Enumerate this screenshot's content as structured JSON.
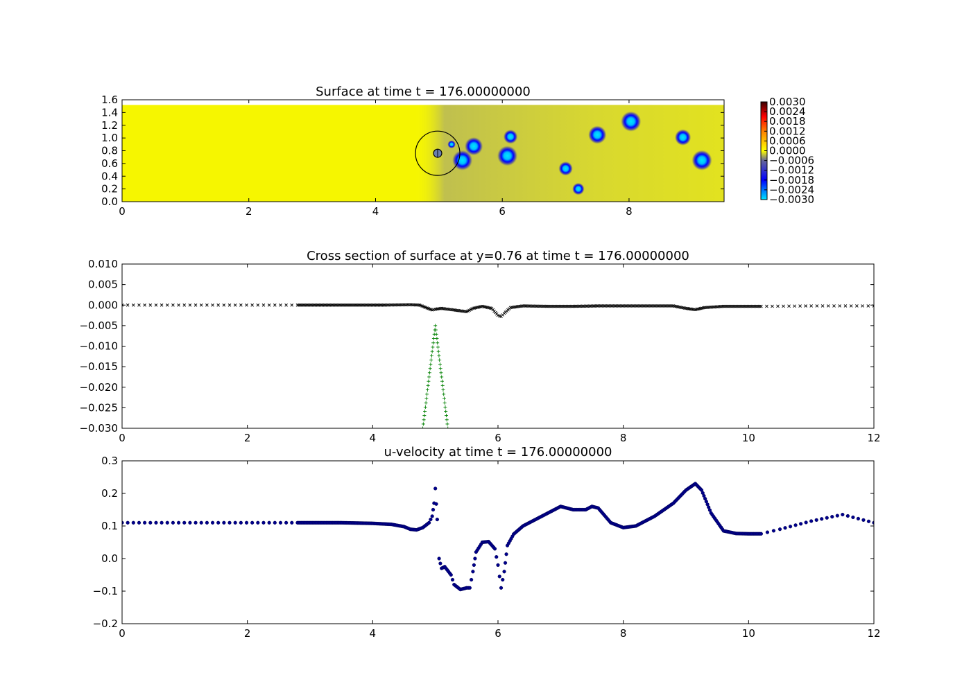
{
  "chart_data": [
    {
      "type": "heatmap",
      "title": "Surface at time t =   176.00000000",
      "xlim": [
        0,
        9.5
      ],
      "ylim": [
        0,
        1.6
      ],
      "domain_ymax": 1.52,
      "xticks": [
        "0",
        "2",
        "4",
        "6",
        "8"
      ],
      "yticks": [
        "0.0",
        "0.2",
        "0.4",
        "0.6",
        "0.8",
        "1.0",
        "1.2",
        "1.4",
        "1.6"
      ],
      "colorbar": {
        "range": [
          -0.003,
          0.003
        ],
        "ticks": [
          "0.0030",
          "0.0024",
          "0.0018",
          "0.0012",
          "0.0006",
          "0.0000",
          "−0.0006",
          "−0.0012",
          "−0.0018",
          "−0.0024",
          "−0.0030"
        ],
        "colors": [
          "#00e5ff",
          "#0000ff",
          "#666699",
          "#ffff00",
          "#ff0000",
          "#3a0000"
        ]
      },
      "vortices": [
        {
          "x": 5.37,
          "y": 0.65,
          "r": 0.1
        },
        {
          "x": 5.55,
          "y": 0.87,
          "r": 0.09
        },
        {
          "x": 6.13,
          "y": 1.02,
          "r": 0.07
        },
        {
          "x": 6.08,
          "y": 0.72,
          "r": 0.1
        },
        {
          "x": 7.0,
          "y": 0.52,
          "r": 0.07
        },
        {
          "x": 7.2,
          "y": 0.2,
          "r": 0.06
        },
        {
          "x": 7.5,
          "y": 1.05,
          "r": 0.09
        },
        {
          "x": 8.03,
          "y": 1.26,
          "r": 0.1
        },
        {
          "x": 8.85,
          "y": 1.01,
          "r": 0.08
        },
        {
          "x": 9.15,
          "y": 0.65,
          "r": 0.1
        },
        {
          "x": 5.2,
          "y": 0.9,
          "r": 0.04
        }
      ],
      "cylinder": {
        "x": 4.98,
        "y": 0.76,
        "r_outer": 0.35,
        "r_inner": 0.065
      },
      "wake_band": {
        "x_start": 4.6,
        "x_end": 9.5
      }
    },
    {
      "type": "scatter",
      "title": "Cross section of surface at y=0.76 at time t =   176.00000000",
      "xlim": [
        0,
        12
      ],
      "ylim": [
        -0.03,
        0.01
      ],
      "xticks": [
        "0",
        "2",
        "4",
        "6",
        "8",
        "10",
        "12"
      ],
      "yticks": [
        "0.010",
        "0.005",
        "0.000",
        "−0.005",
        "−0.010",
        "−0.015",
        "−0.020",
        "−0.025",
        "−0.030"
      ],
      "series": [
        {
          "marker": "x",
          "color": "#000000",
          "x": [
            0,
            2.8,
            3.5,
            4.2,
            4.6,
            4.75,
            4.85,
            4.95,
            5.0,
            5.1,
            5.3,
            5.5,
            5.6,
            5.75,
            5.9,
            6.0,
            6.05,
            6.1,
            6.2,
            6.4,
            6.8,
            7.2,
            7.6,
            8.0,
            8.4,
            8.8,
            9.0,
            9.15,
            9.3,
            9.6,
            10.2,
            11.0,
            12.0
          ],
          "y": [
            0.0,
            0.0,
            0.0,
            0.0,
            0.0001,
            0.0,
            -0.0006,
            -0.0012,
            -0.001,
            -0.0008,
            -0.0012,
            -0.0016,
            -0.0008,
            -0.0003,
            -0.0008,
            -0.0025,
            -0.0028,
            -0.002,
            -0.0006,
            -0.0002,
            -0.0003,
            -0.0003,
            -0.0002,
            -0.0002,
            -0.0002,
            -0.0002,
            -0.0008,
            -0.0011,
            -0.0006,
            -0.0003,
            -0.0003,
            -0.0002,
            -0.0002
          ]
        },
        {
          "marker": "+",
          "color": "#008000",
          "x": [
            4.8,
            4.85,
            4.9,
            4.95,
            5.0,
            5.05,
            5.1,
            5.15,
            5.2
          ],
          "y": [
            -0.03,
            -0.0238,
            -0.0175,
            -0.0113,
            -0.005,
            -0.0113,
            -0.0175,
            -0.0238,
            -0.03
          ]
        }
      ]
    },
    {
      "type": "scatter",
      "title": "u-velocity at time t =   176.00000000",
      "xlim": [
        0,
        12
      ],
      "ylim": [
        -0.2,
        0.3
      ],
      "xticks": [
        "0",
        "2",
        "4",
        "6",
        "8",
        "10",
        "12"
      ],
      "yticks": [
        "0.3",
        "0.2",
        "0.1",
        "0.0",
        "−0.1",
        "−0.2"
      ],
      "series": [
        {
          "marker": "o",
          "color": "#00008b",
          "x": [
            0,
            2.8,
            3.5,
            4.0,
            4.3,
            4.5,
            4.6,
            4.7,
            4.8,
            4.9,
            4.95,
            4.98,
            5.0,
            5.03,
            5.06,
            5.1,
            5.15,
            5.25,
            5.3,
            5.4,
            5.5,
            5.55,
            5.6,
            5.65,
            5.75,
            5.85,
            5.95,
            6.0,
            6.05,
            6.1,
            6.15,
            6.25,
            6.4,
            6.6,
            6.8,
            7.0,
            7.2,
            7.4,
            7.5,
            7.6,
            7.8,
            8.0,
            8.2,
            8.5,
            8.8,
            9.0,
            9.15,
            9.25,
            9.4,
            9.6,
            9.8,
            10.0,
            10.2,
            10.5,
            11.0,
            11.5,
            12.0
          ],
          "y": [
            0.11,
            0.11,
            0.11,
            0.108,
            0.105,
            0.098,
            0.09,
            0.088,
            0.095,
            0.11,
            0.13,
            0.17,
            0.215,
            0.12,
            0.0,
            -0.03,
            -0.025,
            -0.05,
            -0.08,
            -0.095,
            -0.09,
            -0.09,
            -0.04,
            0.02,
            0.05,
            0.052,
            0.03,
            -0.02,
            -0.09,
            -0.04,
            0.04,
            0.075,
            0.1,
            0.12,
            0.14,
            0.16,
            0.15,
            0.15,
            0.16,
            0.155,
            0.11,
            0.095,
            0.1,
            0.13,
            0.17,
            0.21,
            0.23,
            0.21,
            0.14,
            0.085,
            0.077,
            0.076,
            0.076,
            0.09,
            0.115,
            0.135,
            0.11
          ]
        }
      ]
    }
  ]
}
